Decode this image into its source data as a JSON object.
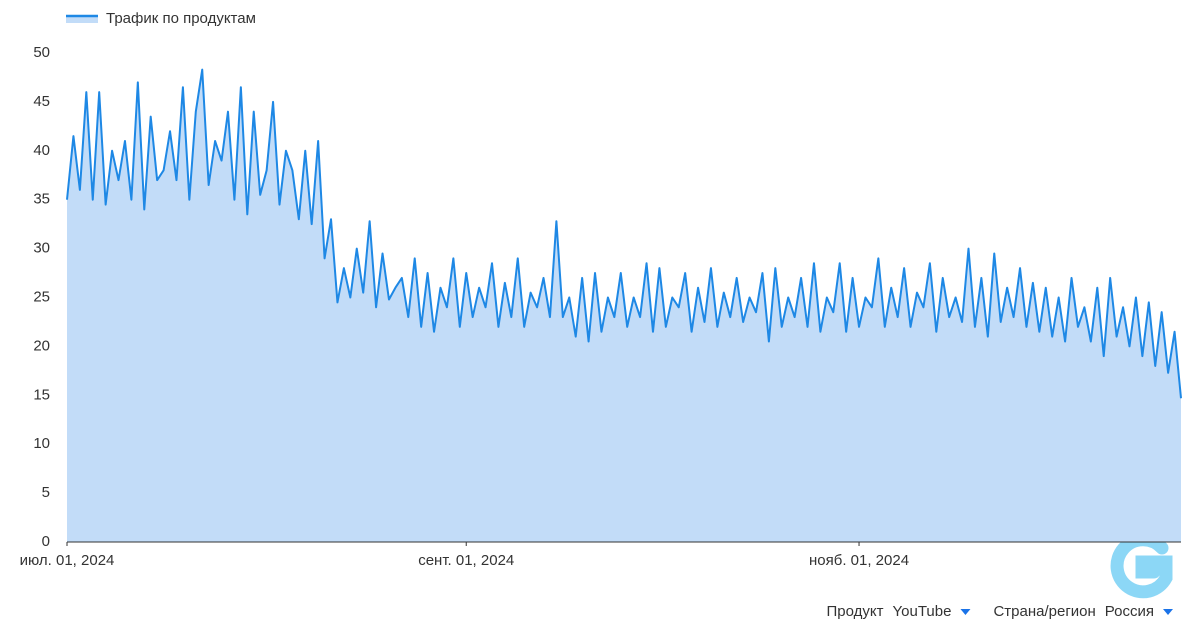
{
  "chart_data": {
    "type": "area",
    "legend": "top-left",
    "x": [
      "2024-07-01",
      "2024-07-02",
      "2024-07-03",
      "2024-07-04",
      "2024-07-05",
      "2024-07-06",
      "2024-07-07",
      "2024-07-08",
      "2024-07-09",
      "2024-07-10",
      "2024-07-11",
      "2024-07-12",
      "2024-07-13",
      "2024-07-14",
      "2024-07-15",
      "2024-07-16",
      "2024-07-17",
      "2024-07-18",
      "2024-07-19",
      "2024-07-20",
      "2024-07-21",
      "2024-07-22",
      "2024-07-23",
      "2024-07-24",
      "2024-07-25",
      "2024-07-26",
      "2024-07-27",
      "2024-07-28",
      "2024-07-29",
      "2024-07-30",
      "2024-07-31",
      "2024-08-01",
      "2024-08-02",
      "2024-08-03",
      "2024-08-04",
      "2024-08-05",
      "2024-08-06",
      "2024-08-07",
      "2024-08-08",
      "2024-08-09",
      "2024-08-10",
      "2024-08-11",
      "2024-08-12",
      "2024-08-13",
      "2024-08-14",
      "2024-08-15",
      "2024-08-16",
      "2024-08-17",
      "2024-08-18",
      "2024-08-19",
      "2024-08-20",
      "2024-08-21",
      "2024-08-22",
      "2024-08-23",
      "2024-08-24",
      "2024-08-25",
      "2024-08-26",
      "2024-08-27",
      "2024-08-28",
      "2024-08-29",
      "2024-08-30",
      "2024-08-31",
      "2024-09-01",
      "2024-09-02",
      "2024-09-03",
      "2024-09-04",
      "2024-09-05",
      "2024-09-06",
      "2024-09-07",
      "2024-09-08",
      "2024-09-09",
      "2024-09-10",
      "2024-09-11",
      "2024-09-12",
      "2024-09-13",
      "2024-09-14",
      "2024-09-15",
      "2024-09-16",
      "2024-09-17",
      "2024-09-18",
      "2024-09-19",
      "2024-09-20",
      "2024-09-21",
      "2024-09-22",
      "2024-09-23",
      "2024-09-24",
      "2024-09-25",
      "2024-09-26",
      "2024-09-27",
      "2024-09-28",
      "2024-09-29",
      "2024-09-30",
      "2024-10-01",
      "2024-10-02",
      "2024-10-03",
      "2024-10-04",
      "2024-10-05",
      "2024-10-06",
      "2024-10-07",
      "2024-10-08",
      "2024-10-09",
      "2024-10-10",
      "2024-10-11",
      "2024-10-12",
      "2024-10-13",
      "2024-10-14",
      "2024-10-15",
      "2024-10-16",
      "2024-10-17",
      "2024-10-18",
      "2024-10-19",
      "2024-10-20",
      "2024-10-21",
      "2024-10-22",
      "2024-10-23",
      "2024-10-24",
      "2024-10-25",
      "2024-10-26",
      "2024-10-27",
      "2024-10-28",
      "2024-10-29",
      "2024-10-30",
      "2024-10-31",
      "2024-11-01",
      "2024-11-02",
      "2024-11-03",
      "2024-11-04",
      "2024-11-05",
      "2024-11-06",
      "2024-11-07",
      "2024-11-08",
      "2024-11-09",
      "2024-11-10",
      "2024-11-11",
      "2024-11-12",
      "2024-11-13",
      "2024-11-14",
      "2024-11-15",
      "2024-11-16",
      "2024-11-17",
      "2024-11-18",
      "2024-11-19",
      "2024-11-20",
      "2024-11-21",
      "2024-11-22",
      "2024-11-23",
      "2024-11-24",
      "2024-11-25",
      "2024-11-26",
      "2024-11-27",
      "2024-11-28",
      "2024-11-29",
      "2024-11-30",
      "2024-12-01",
      "2024-12-02",
      "2024-12-03",
      "2024-12-04",
      "2024-12-05",
      "2024-12-06",
      "2024-12-07",
      "2024-12-08",
      "2024-12-09",
      "2024-12-10",
      "2024-12-11",
      "2024-12-12",
      "2024-12-13",
      "2024-12-14",
      "2024-12-15",
      "2024-12-16",
      "2024-12-17",
      "2024-12-18",
      "2024-12-19",
      "2024-12-20",
      "2024-12-21"
    ],
    "series": [
      {
        "name": "Трафик по продуктам",
        "color": "#1e88e5",
        "fill": "#c2dcf8",
        "values": [
          35,
          41.5,
          36,
          46,
          35,
          46,
          34.5,
          40,
          37,
          41,
          35,
          47,
          34,
          43.5,
          37,
          38,
          42,
          37,
          46.5,
          35,
          44,
          48.3,
          36.5,
          41,
          39,
          44,
          35,
          46.5,
          33.5,
          44,
          35.5,
          38,
          45,
          34.5,
          40,
          38,
          33,
          40,
          32.5,
          41,
          29,
          33,
          24.5,
          28,
          25,
          30,
          25.5,
          32.8,
          24,
          29.5,
          24.8,
          26,
          27,
          23,
          29,
          22,
          27.5,
          21.5,
          26,
          24,
          29,
          22,
          27.5,
          23,
          26,
          24,
          28.5,
          22,
          26.5,
          23,
          29,
          22,
          25.5,
          24,
          27,
          23,
          32.8,
          23,
          25,
          21,
          27,
          20.5,
          27.5,
          21.5,
          25,
          23,
          27.5,
          22,
          25,
          23,
          28.5,
          21.5,
          28,
          22,
          25,
          24,
          27.5,
          21.5,
          26,
          22.5,
          28,
          22,
          25.5,
          23,
          27,
          22.5,
          25,
          23.5,
          27.5,
          20.5,
          28,
          22,
          25,
          23,
          27,
          22,
          28.5,
          21.5,
          25,
          23.5,
          28.5,
          21.5,
          27,
          22,
          25,
          24,
          29,
          22,
          26,
          23,
          28,
          22,
          25.5,
          24,
          28.5,
          21.5,
          27,
          23,
          25,
          22.5,
          30,
          22,
          27,
          21,
          29.5,
          22.5,
          26,
          23,
          28,
          22,
          26.5,
          21.5,
          26,
          21,
          25,
          20.5,
          27,
          22,
          24,
          20.5,
          26,
          19,
          27,
          21,
          24,
          20,
          25,
          19,
          24.5,
          18,
          23.5,
          17.3,
          21.5,
          14.7
        ]
      }
    ],
    "xlim": [
      "2024-07-01",
      "2024-12-21"
    ],
    "xticks": [
      {
        "value": "2024-07-01",
        "label": "июл. 01, 2024"
      },
      {
        "value": "2024-09-01",
        "label": "сент. 01, 2024"
      },
      {
        "value": "2024-11-01",
        "label": "нояб. 01, 2024"
      }
    ],
    "ylim": [
      0,
      50
    ],
    "yticks": [
      0,
      5,
      10,
      15,
      20,
      25,
      30,
      35,
      40,
      45,
      50
    ],
    "grid": false
  },
  "filters": [
    {
      "label": "Продукт",
      "value": "YouTube"
    },
    {
      "label": "Страна/регион",
      "value": "Россия"
    }
  ]
}
